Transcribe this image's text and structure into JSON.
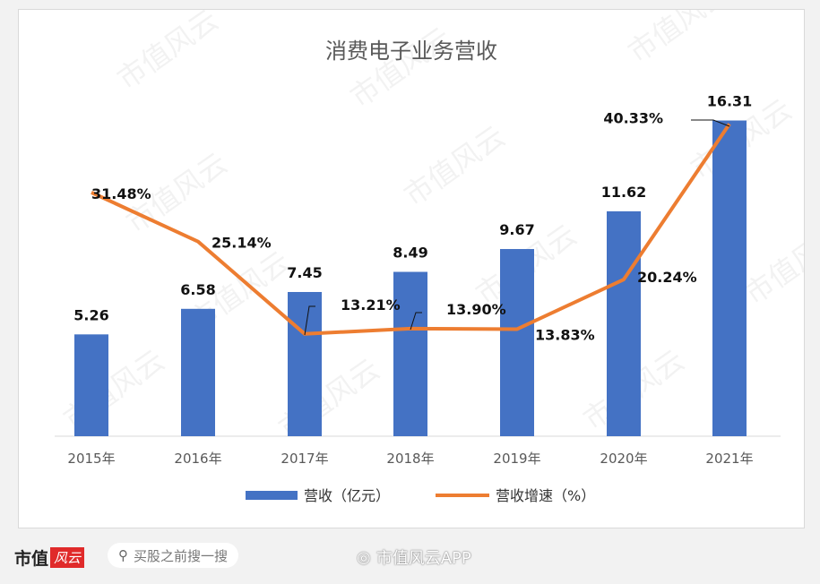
{
  "chart_data": {
    "type": "bar+line",
    "title": "消费电子业务营收",
    "categories": [
      "2015年",
      "2016年",
      "2017年",
      "2018年",
      "2019年",
      "2020年",
      "2021年"
    ],
    "series": [
      {
        "name": "营收（亿元）",
        "type": "bar",
        "axis": "left",
        "color": "#4472c4",
        "values": [
          5.26,
          6.58,
          7.45,
          8.49,
          9.67,
          11.62,
          16.31
        ],
        "labels": [
          "5.26",
          "6.58",
          "7.45",
          "8.49",
          "9.67",
          "11.62",
          "16.31"
        ]
      },
      {
        "name": "营收增速（%）",
        "type": "line",
        "axis": "right",
        "color": "#ed7d31",
        "values": [
          31.48,
          25.14,
          13.21,
          13.9,
          13.83,
          20.24,
          40.33
        ],
        "labels": [
          "31.48%",
          "25.14%",
          "13.21%",
          "13.90%",
          "13.83%",
          "20.24%",
          "40.33%"
        ]
      }
    ],
    "ylim_left": [
      0,
      18
    ],
    "ylim_right": [
      0,
      45
    ],
    "grid": false,
    "legend": "bottom"
  },
  "watermark": "市值风云",
  "footer": {
    "logo_text": "市值",
    "logo_script": "风云",
    "search_placeholder": "买股之前搜一搜",
    "weibo_handle": "市值风云APP"
  }
}
